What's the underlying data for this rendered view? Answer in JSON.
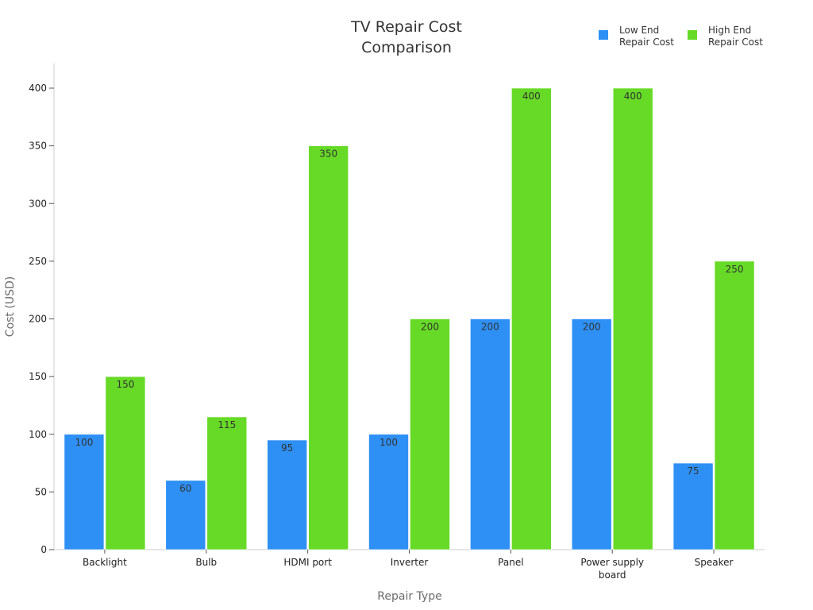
{
  "chart_data": {
    "type": "bar",
    "title": [
      "TV Repair Cost",
      "Comparison"
    ],
    "xlabel": "Repair Type",
    "ylabel": "Cost (USD)",
    "ylim": [
      0,
      420
    ],
    "yticks": [
      0,
      50,
      100,
      150,
      200,
      250,
      300,
      350,
      400
    ],
    "categories": [
      [
        "Backlight"
      ],
      [
        "Bulb"
      ],
      [
        "HDMI port"
      ],
      [
        "Inverter"
      ],
      [
        "Panel"
      ],
      [
        "Power supply",
        "board"
      ],
      [
        "Speaker"
      ]
    ],
    "series": [
      {
        "name": [
          "Low End",
          "Repair Cost"
        ],
        "values": [
          100,
          60,
          95,
          100,
          200,
          200,
          75
        ],
        "color": "#2e90f5"
      },
      {
        "name": [
          "High End",
          "Repair Cost"
        ],
        "values": [
          150,
          115,
          350,
          200,
          400,
          400,
          250
        ],
        "color": "#66da26"
      }
    ],
    "legend_position": "top-right",
    "grid": false
  }
}
